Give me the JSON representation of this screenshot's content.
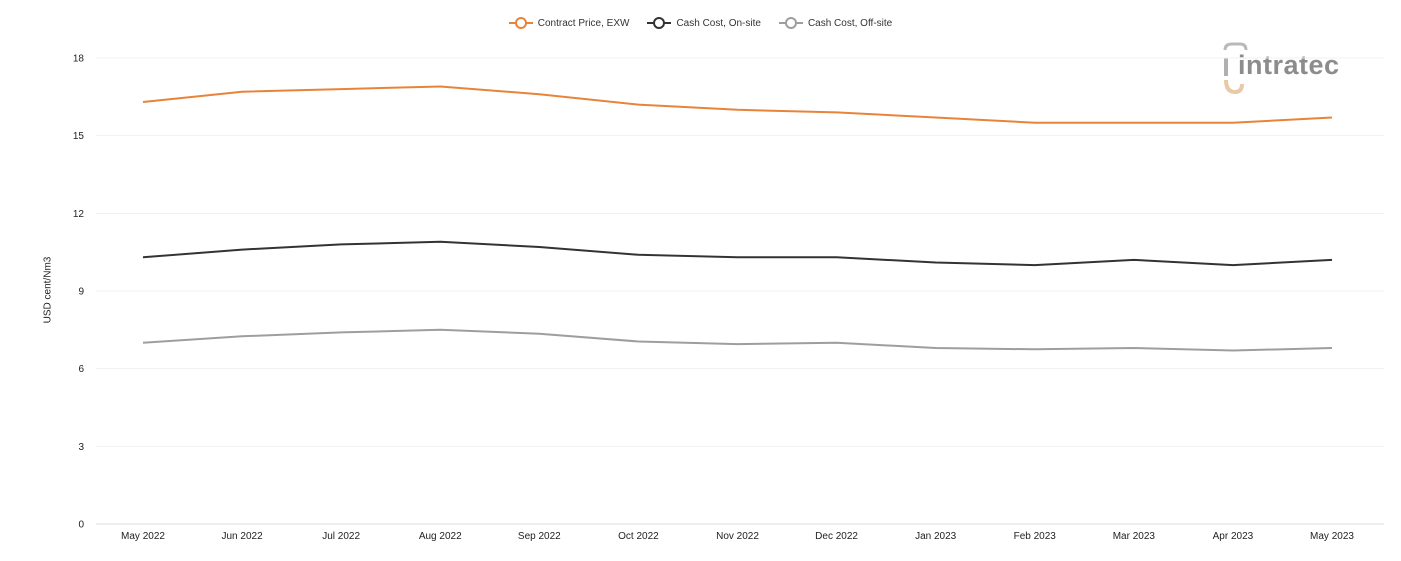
{
  "chart_data": {
    "type": "line",
    "categories": [
      "May 2022",
      "Jun 2022",
      "Jul 2022",
      "Aug 2022",
      "Sep 2022",
      "Oct 2022",
      "Nov 2022",
      "Dec 2022",
      "Jan 2023",
      "Feb 2023",
      "Mar 2023",
      "Apr 2023",
      "May 2023"
    ],
    "series": [
      {
        "name": "Contract Price, EXW",
        "color": "#e8843a",
        "values": [
          16.3,
          16.7,
          16.8,
          16.9,
          16.6,
          16.2,
          16.0,
          15.9,
          15.7,
          15.5,
          15.5,
          15.5,
          15.7
        ]
      },
      {
        "name": "Cash Cost, On-site",
        "color": "#333333",
        "values": [
          10.3,
          10.6,
          10.8,
          10.9,
          10.7,
          10.4,
          10.3,
          10.3,
          10.1,
          10.0,
          10.2,
          10.0,
          10.2
        ]
      },
      {
        "name": "Cash Cost, Off-site",
        "color": "#9e9e9e",
        "values": [
          7.0,
          7.25,
          7.4,
          7.5,
          7.35,
          7.05,
          6.95,
          7.0,
          6.8,
          6.75,
          6.8,
          6.7,
          6.8
        ]
      }
    ],
    "yticks": [
      "0",
      "3",
      "6",
      "9",
      "12",
      "15",
      "18"
    ],
    "ylim": [
      0,
      18
    ],
    "ylabel": "USD cent/Nm3",
    "xlabel": "",
    "grid": true,
    "legend_position": "top-center"
  },
  "logo": {
    "text": "intratec",
    "icon": "intratec-logo-icon"
  }
}
